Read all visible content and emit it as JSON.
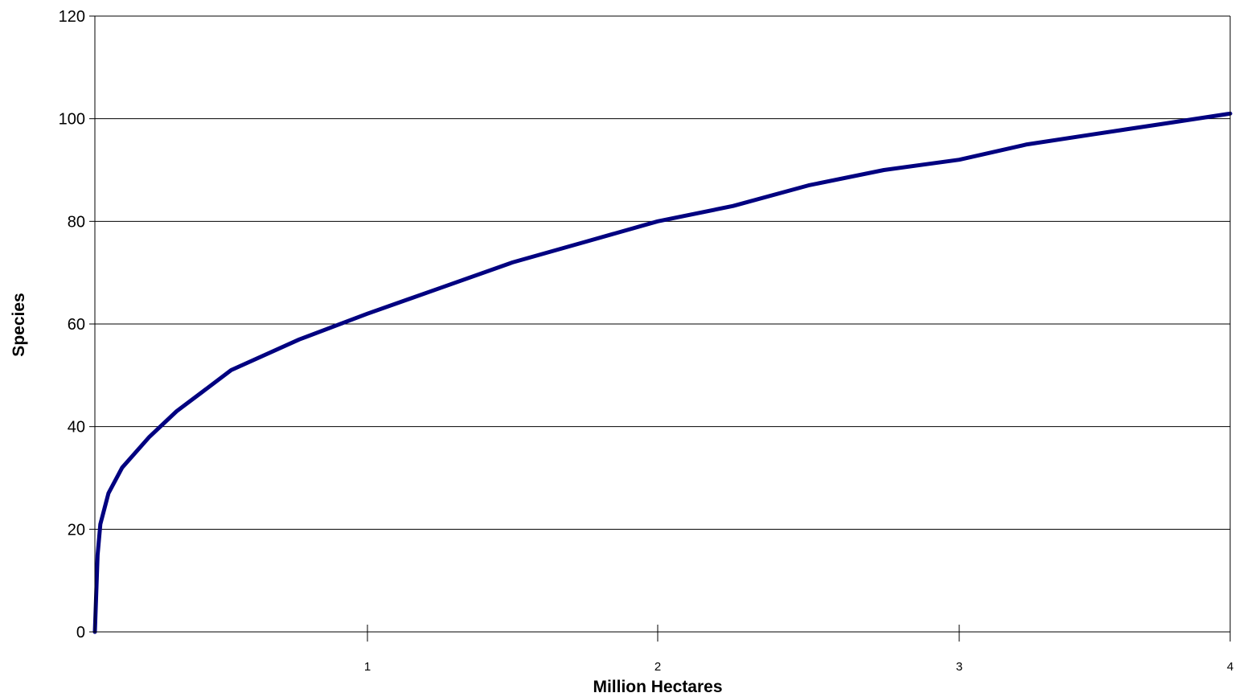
{
  "chart_data": {
    "type": "line",
    "title": "",
    "xlabel": "Million Hectares",
    "ylabel": "Species",
    "xlim": [
      0,
      4
    ],
    "ylim": [
      0,
      120
    ],
    "x_ticks": [
      1,
      2,
      3,
      4
    ],
    "x_tick_labels": [
      "1",
      "2",
      "3",
      "4"
    ],
    "y_ticks": [
      0,
      20,
      40,
      60,
      80,
      100,
      120
    ],
    "y_tick_labels": [
      "0",
      "20",
      "40",
      "60",
      "80",
      "100",
      "120"
    ],
    "grid": "horizontal",
    "legend": "none",
    "series": [
      {
        "color": "#000080",
        "x": [
          0,
          0.01,
          0.02,
          0.05,
          0.1,
          0.2,
          0.3,
          0.4,
          0.5,
          0.75,
          1,
          1.25,
          1.5,
          1.75,
          2,
          2.25,
          2.5,
          2.75,
          3,
          3.25,
          3.5,
          3.75,
          4
        ],
        "y": [
          0,
          15,
          21,
          27,
          32,
          38,
          43,
          47,
          51,
          57,
          62,
          67,
          72,
          76,
          80,
          83,
          87,
          90,
          92,
          95,
          97,
          99,
          101
        ]
      }
    ]
  }
}
